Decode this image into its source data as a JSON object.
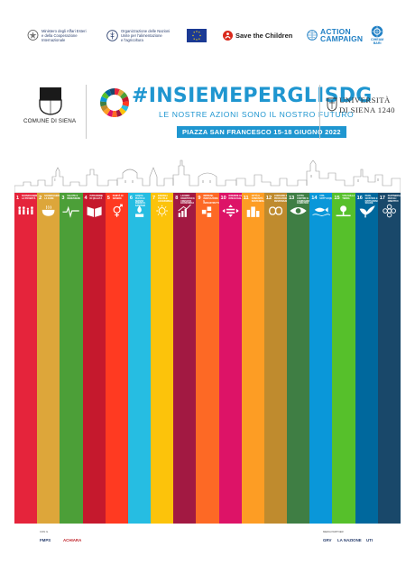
{
  "partners": [
    {
      "name": "ministero",
      "text_line1": "Ministero degli Affari Esteri",
      "text_line2": "e della Cooperazione Internazionale"
    },
    {
      "name": "fao",
      "text_line1": "Organizzazione delle Nazioni",
      "text_line2": "Unite per l'alimentazione",
      "text_line3": "e l'agricoltura"
    },
    {
      "name": "eu"
    },
    {
      "name": "save-the-children",
      "text": "Save the Children"
    },
    {
      "name": "action-campaign",
      "text_line1": "ACTION",
      "text_line2": "CAMPAIGN"
    },
    {
      "name": "ciheam",
      "text_line1": "CIHEAM",
      "text_line2": "BARI"
    }
  ],
  "header": {
    "city": "COMUNE DI SIENA",
    "title": "#INSIEMEPERGLISDG",
    "subtitle": "LE NOSTRE AZIONI SONO IL NOSTRO FUTURO",
    "date_banner": "PIAZZA SAN FRANCESCO 15-18 GIUGNO 2022",
    "university_line1": "UNIVERSITÀ",
    "university_line2": "DI SIENA 1240"
  },
  "colors": {
    "accent_blue": "#1f96d0",
    "sdg": [
      "#e5243b",
      "#dda63a",
      "#4c9f38",
      "#c5192d",
      "#ff3a21",
      "#26bde2",
      "#fcc30b",
      "#a21942",
      "#fd6925",
      "#dd1367",
      "#fd9d24",
      "#bf8b2e",
      "#3f7e44",
      "#0a97d9",
      "#56c02b",
      "#00689d",
      "#19486a"
    ]
  },
  "goals": [
    {
      "num": "1",
      "label": "SCONFIGGERE LA POVERTÀ",
      "icon": "family-icon"
    },
    {
      "num": "2",
      "label": "SCONFIGGERE LA FAME",
      "icon": "bowl-icon"
    },
    {
      "num": "3",
      "label": "SALUTE E BENESSERE",
      "icon": "heartbeat-icon"
    },
    {
      "num": "4",
      "label": "ISTRUZIONE DI QUALITÀ",
      "icon": "book-icon"
    },
    {
      "num": "5",
      "label": "PARITÀ DI GENERE",
      "icon": "gender-icon"
    },
    {
      "num": "6",
      "label": "ACQUA PULITA E SERVIZI IGIENICO-SANITARI",
      "icon": "water-icon"
    },
    {
      "num": "7",
      "label": "ENERGIA PULITA E ACCESSIBILE",
      "icon": "sun-icon"
    },
    {
      "num": "8",
      "label": "LAVORO DIGNITOSO E CRESCITA ECONOMICA",
      "icon": "growth-icon"
    },
    {
      "num": "9",
      "label": "IMPRESE, INNOVAZIONE E INFRASTRUTTURE",
      "icon": "cubes-icon"
    },
    {
      "num": "10",
      "label": "RIDURRE LE DISUGUAGLIANZE",
      "icon": "equal-icon"
    },
    {
      "num": "11",
      "label": "CITTÀ E COMUNITÀ SOSTENIBILI",
      "icon": "buildings-icon"
    },
    {
      "num": "12",
      "label": "CONSUMO E PRODUZIONE RESPONSABILI",
      "icon": "infinity-icon"
    },
    {
      "num": "13",
      "label": "LOTTA CONTRO IL CAMBIAMENTO CLIMATICO",
      "icon": "eye-icon"
    },
    {
      "num": "14",
      "label": "VITA SOTT'ACQUA",
      "icon": "fish-icon"
    },
    {
      "num": "15",
      "label": "VITA SULLA TERRA",
      "icon": "tree-icon"
    },
    {
      "num": "16",
      "label": "PACE, GIUSTIZIA E ISTITUZIONI SOLIDE",
      "icon": "dove-icon"
    },
    {
      "num": "17",
      "label": "PARTNERSHIP PER GLI OBIETTIVI",
      "icon": "flower-icon"
    }
  ],
  "footer": {
    "left_caption": "CON IL",
    "left_logo1": "FMPS",
    "left_logo2": "ACHIARA",
    "right_caption": "MEDIA PARTNER",
    "right_logo1": "GRV",
    "right_logo2": "LA NAZIONE",
    "right_logo3": "UTI"
  }
}
